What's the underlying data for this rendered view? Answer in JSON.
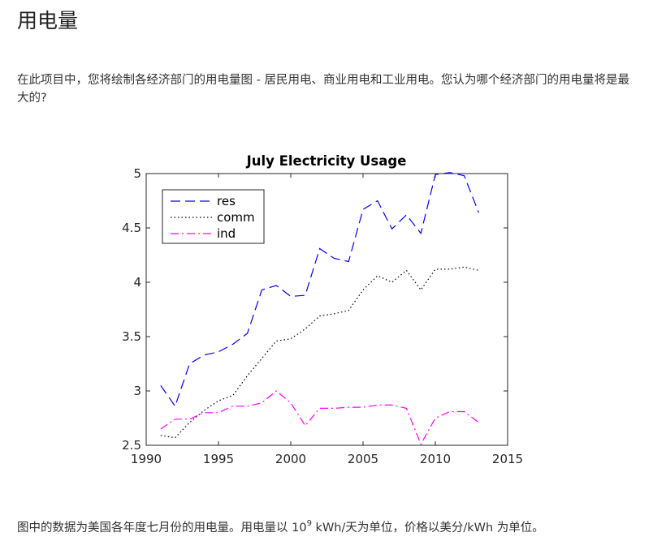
{
  "page": {
    "title": "用电量",
    "intro": "在此项目中，您将绘制各经济部门的用电量图 - 居民用电、商业用电和工业用电。您认为哪个经济部门的用电量将是最大的?",
    "caption_before": "图中的数据为美国各年度七月份的用电量。用电量以 10",
    "caption_sup": "9",
    "caption_after": " kWh/天为单位，价格以美分/kWh 为单位。"
  },
  "chart_data": {
    "type": "line",
    "title": "July Electricity Usage",
    "xlabel": "",
    "ylabel": "",
    "xlim": [
      1990,
      2015
    ],
    "ylim": [
      2.5,
      5
    ],
    "xticks": [
      1990,
      1995,
      2000,
      2005,
      2010,
      2015
    ],
    "yticks": [
      2.5,
      3,
      3.5,
      4,
      4.5,
      5
    ],
    "x": [
      1991,
      1992,
      1993,
      1994,
      1995,
      1996,
      1997,
      1998,
      1999,
      2000,
      2001,
      2002,
      2003,
      2004,
      2005,
      2006,
      2007,
      2008,
      2009,
      2010,
      2011,
      2012,
      2013
    ],
    "series": [
      {
        "name": "res",
        "style": "dashed",
        "color": "#0000ff",
        "values": [
          3.05,
          2.86,
          3.25,
          3.33,
          3.36,
          3.43,
          3.53,
          3.93,
          3.97,
          3.87,
          3.88,
          4.31,
          4.22,
          4.19,
          4.67,
          4.75,
          4.49,
          4.62,
          4.45,
          4.99,
          5.01,
          4.98,
          4.64
        ]
      },
      {
        "name": "comm",
        "style": "dotted",
        "color": "#000000",
        "values": [
          2.59,
          2.57,
          2.71,
          2.82,
          2.91,
          2.96,
          3.14,
          3.3,
          3.46,
          3.48,
          3.57,
          3.69,
          3.71,
          3.74,
          3.93,
          4.06,
          4.0,
          4.11,
          3.93,
          4.12,
          4.12,
          4.14,
          4.11
        ]
      },
      {
        "name": "ind",
        "style": "dashdot",
        "color": "#ff00ff",
        "values": [
          2.65,
          2.74,
          2.74,
          2.8,
          2.8,
          2.86,
          2.86,
          2.89,
          3.0,
          2.89,
          2.68,
          2.84,
          2.84,
          2.85,
          2.85,
          2.87,
          2.87,
          2.84,
          2.51,
          2.75,
          2.81,
          2.81,
          2.71
        ]
      }
    ],
    "legend": {
      "position": "top-left",
      "entries": [
        "res",
        "comm",
        "ind"
      ]
    },
    "grid": false
  }
}
